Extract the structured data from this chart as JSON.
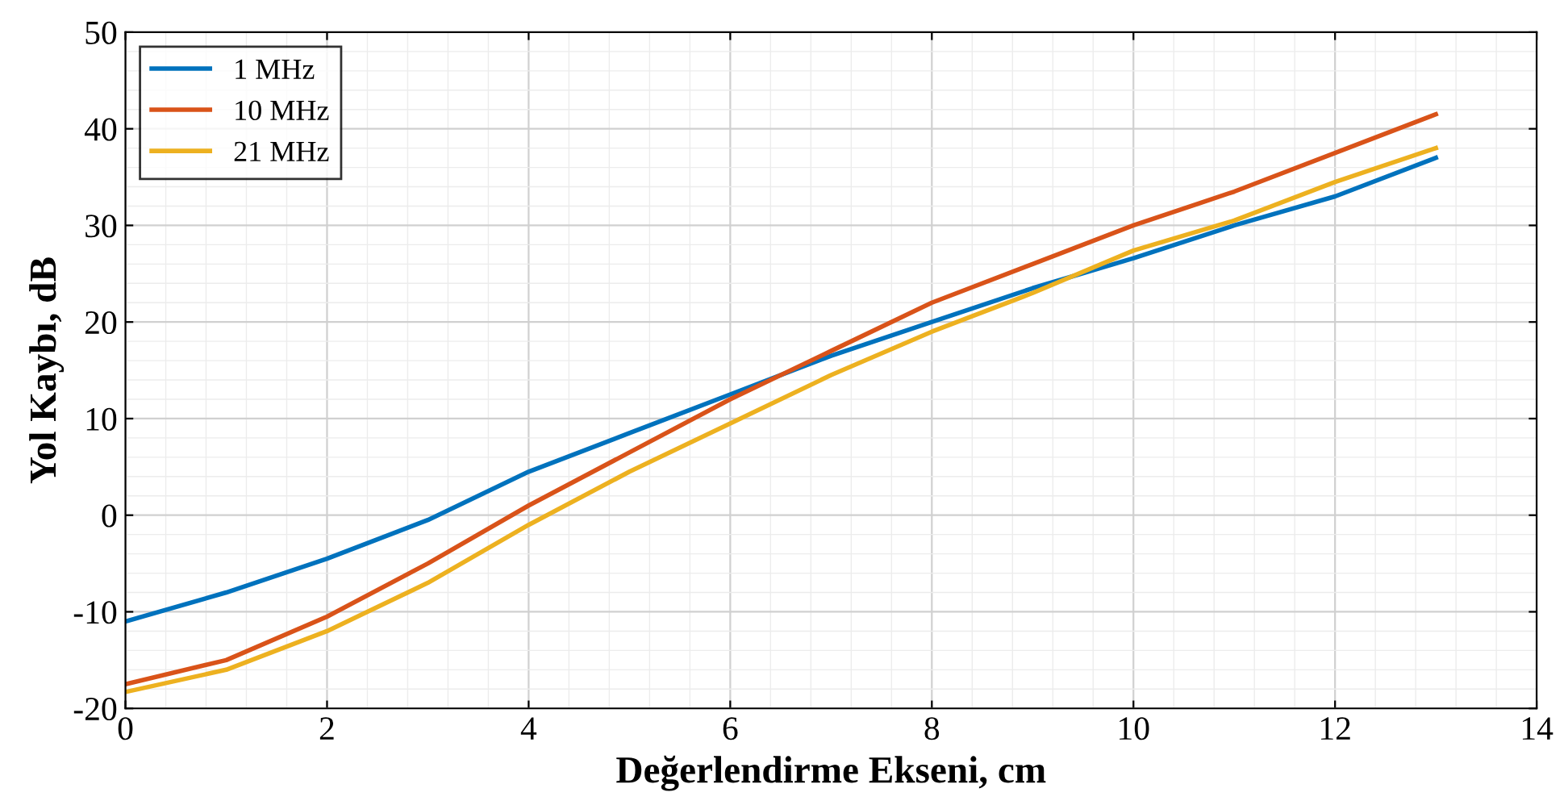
{
  "chart_data": {
    "type": "line",
    "xlabel": "Değerlendirme Ekseni, cm",
    "ylabel": "Yol Kaybı, dB",
    "x": [
      0,
      1,
      2,
      3,
      4,
      5,
      6,
      7,
      8,
      9,
      10,
      11,
      12,
      13
    ],
    "series": [
      {
        "name": "1 MHz",
        "color": "#0072bd",
        "values": [
          -11,
          -8,
          -4.5,
          -0.5,
          4.5,
          8.5,
          12.5,
          16.5,
          20,
          23.5,
          26.6,
          30,
          33,
          37
        ]
      },
      {
        "name": "10 MHz",
        "color": "#d95319",
        "values": [
          -17.5,
          -15,
          -10.5,
          -5,
          1,
          6.5,
          12,
          17,
          22,
          26,
          30,
          33.5,
          37.5,
          41.5
        ]
      },
      {
        "name": "21 MHz",
        "color": "#edb120",
        "values": [
          -18.3,
          -16,
          -12,
          -7,
          -1,
          4.5,
          9.5,
          14.5,
          19,
          23,
          27.4,
          30.5,
          34.5,
          38
        ]
      }
    ],
    "xlim": [
      0,
      14
    ],
    "xticks": [
      0,
      2,
      4,
      6,
      8,
      10,
      12,
      14
    ],
    "ylim": [
      -20,
      50
    ],
    "yticks": [
      -20,
      -10,
      0,
      10,
      20,
      30,
      40,
      50
    ],
    "grid": true,
    "legend": "top left",
    "marker": "none",
    "line_style": "solid"
  }
}
